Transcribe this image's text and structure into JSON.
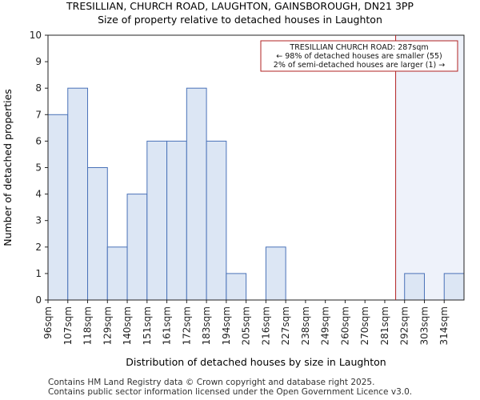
{
  "chart_data": {
    "type": "bar",
    "title": "TRESILLIAN, CHURCH ROAD, LAUGHTON, GAINSBOROUGH, DN21 3PP",
    "subtitle": "Size of property relative to detached houses in Laughton",
    "xlabel": "Distribution of detached houses by size in Laughton",
    "ylabel": "Number of detached properties",
    "categories": [
      "96sqm",
      "107sqm",
      "118sqm",
      "129sqm",
      "140sqm",
      "151sqm",
      "161sqm",
      "172sqm",
      "183sqm",
      "194sqm",
      "205sqm",
      "216sqm",
      "227sqm",
      "238sqm",
      "249sqm",
      "260sqm",
      "270sqm",
      "281sqm",
      "292sqm",
      "303sqm",
      "314sqm"
    ],
    "values": [
      7,
      8,
      5,
      2,
      4,
      6,
      6,
      8,
      6,
      1,
      0,
      2,
      0,
      0,
      0,
      0,
      0,
      0,
      1,
      0,
      1
    ],
    "ylim": [
      0,
      10
    ],
    "yticks": [
      0,
      1,
      2,
      3,
      4,
      5,
      6,
      7,
      8,
      9,
      10
    ],
    "grid": false,
    "bar_color": "#dce6f4",
    "bar_edge_color": "#4a72b8",
    "marker": {
      "value_index": 17.55,
      "label": "287sqm",
      "color": "#b22222",
      "annotation": [
        "TRESILLIAN CHURCH ROAD: 287sqm",
        "← 98% of detached houses are smaller (55)",
        "2% of semi-detached houses are larger (1) →"
      ]
    },
    "highlight_color": "#eef2fa"
  },
  "footer": {
    "line1": "Contains HM Land Registry data © Crown copyright and database right 2025.",
    "line2": "Contains public sector information licensed under the Open Government Licence v3.0."
  }
}
